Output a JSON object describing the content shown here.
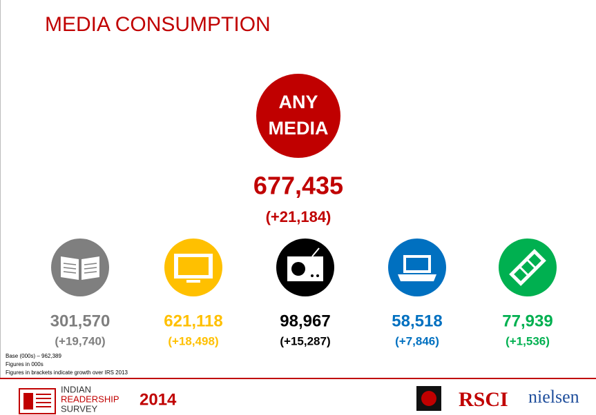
{
  "header": {
    "title": "MEDIA CONSUMPTION"
  },
  "hero": {
    "label_lines": [
      "ANY",
      "MEDIA"
    ],
    "value": "677,435",
    "growth": "(+21,184)"
  },
  "media": [
    {
      "value": "301,570",
      "growth": "(+19,740)"
    },
    {
      "value": "621,118",
      "growth": "(+18,498)"
    },
    {
      "value": "98,967",
      "growth": "(+15,287)"
    },
    {
      "value": "58,518",
      "growth": "(+7,846)"
    },
    {
      "value": "77,939",
      "growth": "(+1,536)"
    }
  ],
  "notes": [
    "Base (000s) – 962,389",
    "Figures in 000s",
    "Figures in brackets indicate growth over IRS 2013"
  ],
  "footer": {
    "logo_lines": [
      "INDIAN",
      "READERSHIP",
      "SURVEY"
    ],
    "year": "2014",
    "partner1": "RSCI",
    "partner2": "nielsen"
  }
}
